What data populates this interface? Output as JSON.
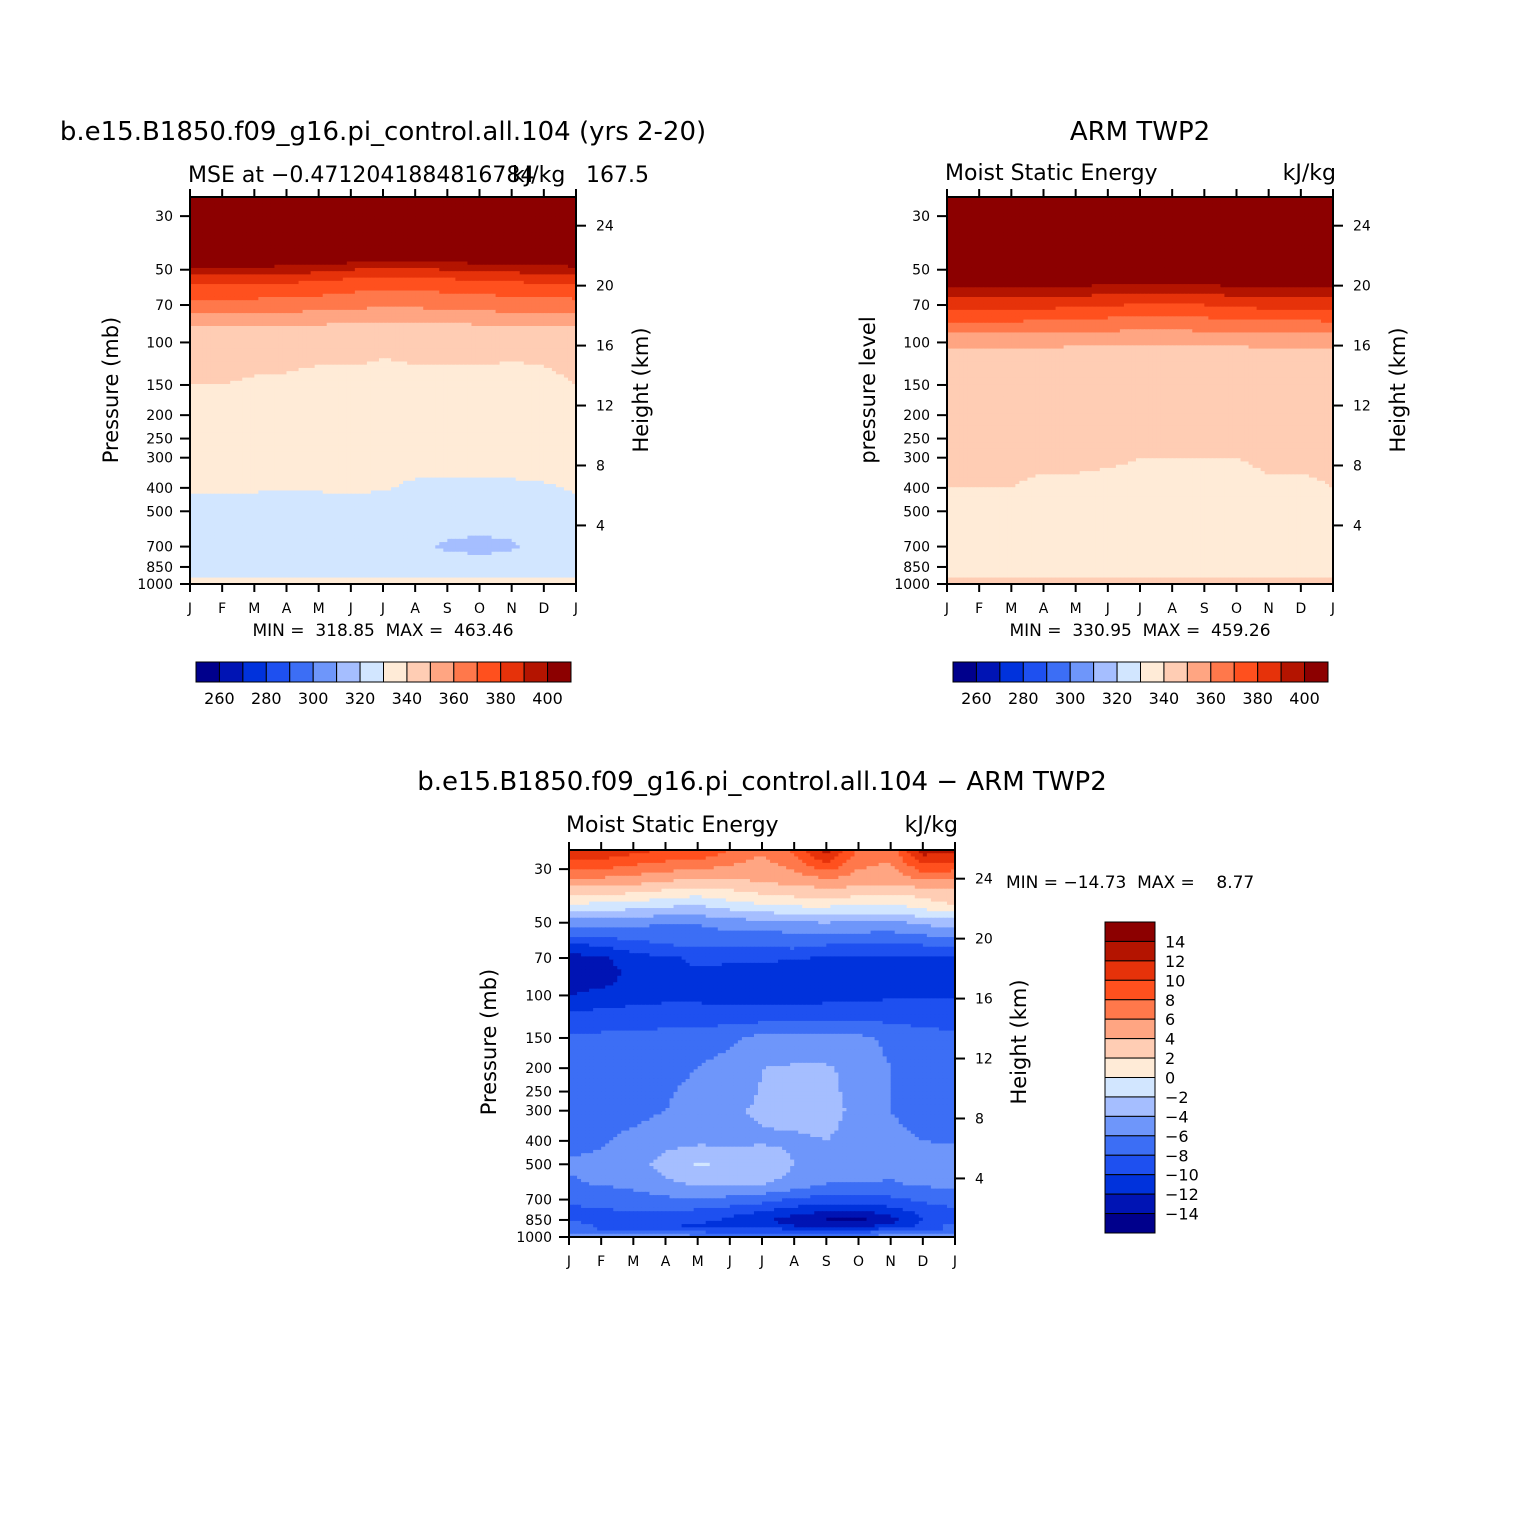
{
  "chart_data": [
    {
      "type": "heatmap",
      "title": "b.e15.B1850.f09_g16.pi_control.all.104 (yrs 2-20)",
      "subtitle_left": "MSE at −0.4712041884816784",
      "subtitle_mid": "kJ/kg",
      "subtitle_right": "167.5",
      "ylabel": "Pressure (mb)",
      "ylabel_right": "Height (km)",
      "x_ticks": [
        "J",
        "F",
        "M",
        "A",
        "M",
        "J",
        "J",
        "A",
        "S",
        "O",
        "N",
        "D",
        "J"
      ],
      "y_ticks": [
        "30",
        "50",
        "70",
        "100",
        "150",
        "200",
        "250",
        "300",
        "400",
        "500",
        "700",
        "850",
        "1000"
      ],
      "y_ticks_right": [
        "24",
        "20",
        "16",
        "12",
        "8",
        "4"
      ],
      "stats": "MIN =  318.85  MAX =  463.46",
      "levels": [
        255,
        260,
        270,
        280,
        290,
        300,
        310,
        320,
        330,
        340,
        350,
        360,
        370,
        380,
        390,
        400,
        410
      ],
      "colorbar_labels": [
        "260",
        "280",
        "300",
        "320",
        "340",
        "360",
        "380",
        "400"
      ],
      "months": [
        0,
        1,
        2,
        3,
        4,
        5,
        6,
        7,
        8,
        9,
        10,
        11,
        12
      ],
      "pressure_levels": [
        30,
        45,
        50,
        55,
        60,
        70,
        80,
        90,
        100,
        150,
        200,
        300,
        400,
        500,
        700,
        850,
        950,
        1000
      ],
      "values": [
        [
          455,
          455,
          455,
          455,
          455,
          455,
          455,
          455,
          455,
          455,
          455,
          455,
          455
        ],
        [
          410,
          410,
          410,
          410,
          408,
          406,
          403,
          403,
          405,
          406,
          407,
          409,
          410
        ],
        [
          396,
          396,
          396,
          395,
          393,
          390,
          388,
          389,
          390,
          392,
          393,
          394,
          396
        ],
        [
          384,
          384,
          384,
          383,
          381,
          379,
          377,
          378,
          379,
          381,
          382,
          383,
          384
        ],
        [
          376,
          376,
          376,
          375,
          374,
          372,
          370,
          371,
          372,
          373,
          374,
          375,
          376
        ],
        [
          366,
          366,
          366,
          365,
          364,
          363,
          361,
          362,
          363,
          364,
          365,
          365,
          366
        ],
        [
          356,
          356,
          356,
          355,
          354,
          353,
          352,
          352,
          353,
          354,
          355,
          355,
          356
        ],
        [
          347,
          347,
          347,
          346,
          345,
          344,
          343,
          343,
          344,
          345,
          346,
          346,
          347
        ],
        [
          343,
          343,
          343,
          342,
          342,
          342,
          341,
          341,
          341,
          342,
          342,
          342,
          343
        ],
        [
          340,
          340,
          339,
          339,
          338,
          338,
          338,
          339,
          339,
          338,
          337,
          338,
          340
        ],
        [
          336,
          336,
          336,
          336,
          336,
          336,
          336,
          336,
          336,
          336,
          336,
          336,
          336
        ],
        [
          334,
          334,
          334,
          334,
          334,
          334,
          334,
          334,
          334,
          334,
          334,
          334,
          334
        ],
        [
          331,
          331,
          331,
          331,
          331,
          332,
          331,
          328,
          328,
          328,
          328,
          329,
          331
        ],
        [
          327,
          327,
          325,
          324,
          324,
          324,
          322,
          322,
          322,
          322,
          322,
          324,
          327
        ],
        [
          324,
          324,
          323,
          322,
          322,
          322,
          321,
          321,
          319.5,
          318.9,
          319.5,
          322,
          324
        ],
        [
          323,
          323,
          322,
          322,
          322,
          322,
          322,
          322,
          322,
          322,
          322,
          322,
          323
        ],
        [
          331,
          331,
          331,
          332,
          332,
          332,
          331,
          331,
          331,
          331,
          331,
          331,
          331
        ],
        [
          335,
          335,
          335,
          335,
          335,
          335,
          335,
          335,
          335,
          335,
          335,
          335,
          335
        ]
      ]
    },
    {
      "type": "heatmap",
      "title": "ARM TWP2",
      "subtitle_left": "Moist Static Energy",
      "subtitle_right": "kJ/kg",
      "ylabel": "pressure level",
      "ylabel_right": "Height (km)",
      "x_ticks": [
        "J",
        "F",
        "M",
        "A",
        "M",
        "J",
        "J",
        "A",
        "S",
        "O",
        "N",
        "D",
        "J"
      ],
      "y_ticks": [
        "30",
        "50",
        "70",
        "100",
        "150",
        "200",
        "250",
        "300",
        "400",
        "500",
        "700",
        "850",
        "1000"
      ],
      "y_ticks_right": [
        "24",
        "20",
        "16",
        "12",
        "8",
        "4"
      ],
      "stats": "MIN =  330.95  MAX =  459.26",
      "levels": [
        255,
        260,
        270,
        280,
        290,
        300,
        310,
        320,
        330,
        340,
        350,
        360,
        370,
        380,
        390,
        400,
        410
      ],
      "colorbar_labels": [
        "260",
        "280",
        "300",
        "320",
        "340",
        "360",
        "380",
        "400"
      ],
      "months": [
        0,
        1,
        2,
        3,
        4,
        5,
        6,
        7,
        8,
        9,
        10,
        11,
        12
      ],
      "pressure_levels": [
        30,
        50,
        57,
        62,
        70,
        80,
        90,
        100,
        120,
        150,
        200,
        300,
        400,
        500,
        700,
        850,
        950,
        1000
      ],
      "values": [
        [
          450,
          450,
          450,
          450,
          450,
          450,
          450,
          450,
          450,
          450,
          450,
          450,
          450
        ],
        [
          430,
          430,
          430,
          430,
          430,
          430,
          430,
          430,
          430,
          430,
          430,
          430,
          430
        ],
        [
          405,
          405,
          405,
          404,
          403,
          402,
          401,
          401,
          402,
          403,
          404,
          404,
          405
        ],
        [
          395,
          395,
          395,
          394,
          393,
          392,
          391,
          391,
          392,
          393,
          394,
          394,
          395
        ],
        [
          384,
          384,
          384,
          383,
          382,
          381,
          379,
          379,
          380,
          382,
          383,
          383,
          384
        ],
        [
          372,
          372,
          372,
          371,
          370,
          369,
          368,
          368,
          369,
          370,
          371,
          371,
          372
        ],
        [
          362,
          362,
          362,
          361,
          361,
          360,
          359,
          359,
          360,
          361,
          361,
          361,
          362
        ],
        [
          352,
          352,
          352,
          352,
          351,
          351,
          351,
          351,
          351,
          351,
          352,
          352,
          352
        ],
        [
          345,
          345,
          345,
          345,
          345,
          345,
          345,
          345,
          345,
          345,
          345,
          345,
          345
        ],
        [
          344,
          344,
          344,
          344,
          344,
          344,
          344,
          344,
          344,
          344,
          344,
          344,
          344
        ],
        [
          342,
          342,
          342,
          342,
          342,
          342,
          342,
          342,
          342,
          342,
          342,
          342,
          342
        ],
        [
          341,
          341,
          341,
          341,
          341,
          341,
          340,
          340,
          340,
          340,
          341,
          341,
          341
        ],
        [
          340,
          340,
          340,
          339,
          339,
          338,
          338,
          339,
          337,
          338,
          339,
          339,
          340
        ],
        [
          337,
          337,
          337,
          337,
          337,
          337,
          337,
          337,
          337,
          337,
          337,
          337,
          337
        ],
        [
          335,
          335,
          335,
          335,
          335,
          335,
          335,
          335,
          335,
          335,
          335,
          335,
          335
        ],
        [
          333,
          333,
          333,
          333,
          333,
          333,
          333,
          333,
          333,
          333,
          333,
          333,
          333
        ],
        [
          341,
          341,
          342,
          342,
          342,
          341,
          341,
          341,
          341,
          341,
          341,
          341,
          341
        ],
        [
          343,
          343,
          343,
          343,
          343,
          343,
          343,
          343,
          343,
          343,
          343,
          343,
          343
        ]
      ]
    },
    {
      "type": "heatmap",
      "title": "b.e15.B1850.f09_g16.pi_control.all.104 − ARM TWP2",
      "subtitle_left": "Moist Static Energy",
      "subtitle_right": "kJ/kg",
      "ylabel": "Pressure (mb)",
      "ylabel_right": "Height (km)",
      "x_ticks": [
        "J",
        "F",
        "M",
        "A",
        "M",
        "J",
        "J",
        "A",
        "S",
        "O",
        "N",
        "D",
        "J"
      ],
      "y_ticks": [
        "30",
        "50",
        "70",
        "100",
        "150",
        "200",
        "250",
        "300",
        "400",
        "500",
        "700",
        "850",
        "1000"
      ],
      "y_ticks_right": [
        "24",
        "20",
        "16",
        "12",
        "8",
        "4"
      ],
      "stats": "MIN = −14.73  MAX =    8.77",
      "levels": [
        -17,
        -14,
        -12,
        -10,
        -8,
        -6,
        -4,
        -2,
        0,
        2,
        4,
        6,
        8,
        10,
        12,
        14,
        17
      ],
      "colorbar_labels": [
        "14",
        "12",
        "10",
        "8",
        "6",
        "4",
        "2",
        "0",
        "−2",
        "−4",
        "−6",
        "−8",
        "−10",
        "−12",
        "−14"
      ],
      "months": [
        0,
        1,
        2,
        3,
        4,
        5,
        6,
        7,
        8,
        9,
        10,
        11,
        12
      ],
      "pressure_levels": [
        30,
        34,
        38,
        42,
        46,
        50,
        55,
        60,
        65,
        70,
        80,
        90,
        100,
        120,
        150,
        200,
        300,
        400,
        500,
        600,
        700,
        800,
        850,
        900,
        950,
        1000
      ],
      "values": [
        [
          8.2,
          8.0,
          7.2,
          6.5,
          6.0,
          5.5,
          5.0,
          6.2,
          8.6,
          6.0,
          5.5,
          8.7,
          8.4
        ],
        [
          5.0,
          4.9,
          4.5,
          3.8,
          3.0,
          3.5,
          4.0,
          4.5,
          5.0,
          4.8,
          4.5,
          5.2,
          5.0
        ],
        [
          2.5,
          2.2,
          1.8,
          1.0,
          0.5,
          1.2,
          2.0,
          2.5,
          3.0,
          2.5,
          2.0,
          2.5,
          3.5
        ],
        [
          0.0,
          -0.5,
          -0.8,
          -1.5,
          -1.8,
          -0.8,
          0.0,
          0.5,
          0.5,
          0.2,
          -0.2,
          1.2,
          2.0
        ],
        [
          -2.5,
          -2.8,
          -3.2,
          -3.6,
          -3.7,
          -3.0,
          -2.5,
          -2.0,
          -1.8,
          -1.9,
          -2.2,
          -1.2,
          -0.5
        ],
        [
          -5.5,
          -5.2,
          -5.5,
          -5.8,
          -5.8,
          -5.0,
          -4.6,
          -4.2,
          -4.0,
          -4.3,
          -4.5,
          -3.6,
          -3.0
        ],
        [
          -7.0,
          -6.9,
          -6.8,
          -6.8,
          -6.7,
          -6.3,
          -6.2,
          -6.0,
          -6.0,
          -6.0,
          -6.2,
          -5.5,
          -5.0
        ],
        [
          -9.8,
          -9.0,
          -8.2,
          -7.8,
          -7.4,
          -7.5,
          -7.6,
          -7.2,
          -7.4,
          -7.6,
          -8.0,
          -7.4,
          -7.0
        ],
        [
          -11.5,
          -11.0,
          -9.5,
          -8.5,
          -8.5,
          -8.4,
          -8.4,
          -8.2,
          -9.0,
          -9.2,
          -9.4,
          -9.0,
          -8.5
        ],
        [
          -12.6,
          -12.4,
          -11.0,
          -10.4,
          -9.5,
          -9.6,
          -9.7,
          -9.8,
          -10.2,
          -10.1,
          -10.3,
          -10.3,
          -10.4
        ],
        [
          -13.0,
          -12.8,
          -11.5,
          -10.8,
          -10.3,
          -10.6,
          -10.8,
          -11.0,
          -11.3,
          -11.2,
          -11.4,
          -11.2,
          -11.0
        ],
        [
          -12.8,
          -12.4,
          -11.4,
          -10.6,
          -10.7,
          -10.8,
          -11.2,
          -11.3,
          -11.2,
          -11.0,
          -11.2,
          -11.2,
          -10.9
        ],
        [
          -12.0,
          -11.2,
          -10.8,
          -10.6,
          -10.6,
          -10.7,
          -10.9,
          -10.8,
          -10.6,
          -10.4,
          -10.3,
          -10.3,
          -10.1
        ],
        [
          -9.6,
          -9.4,
          -9.2,
          -9.0,
          -9.0,
          -9.1,
          -9.2,
          -9.0,
          -9.0,
          -8.9,
          -8.8,
          -8.9,
          -9.0
        ],
        [
          -7.5,
          -7.5,
          -7.4,
          -7.2,
          -7.0,
          -6.5,
          -5.3,
          -5.0,
          -5.0,
          -5.5,
          -6.5,
          -7.2,
          -7.5
        ],
        [
          -7.0,
          -7.0,
          -6.8,
          -6.5,
          -6.0,
          -5.0,
          -4.0,
          -3.8,
          -3.8,
          -4.5,
          -6.0,
          -6.8,
          -7.0
        ],
        [
          -6.8,
          -6.8,
          -6.5,
          -6.0,
          -5.0,
          -4.2,
          -3.8,
          -3.6,
          -3.6,
          -4.3,
          -6.0,
          -6.5,
          -6.8
        ],
        [
          -6.5,
          -6.2,
          -5.5,
          -4.8,
          -4.4,
          -4.4,
          -4.2,
          -4.2,
          -4.0,
          -4.4,
          -5.6,
          -6.0,
          -6.2
        ],
        [
          -5.8,
          -5.6,
          -5.0,
          -3.0,
          -1.8,
          -2.4,
          -2.8,
          -4.0,
          -4.6,
          -4.4,
          -5.2,
          -4.6,
          -4.5
        ],
        [
          -6.2,
          -5.8,
          -5.5,
          -4.5,
          -3.6,
          -3.6,
          -3.8,
          -4.6,
          -6.0,
          -6.2,
          -6.2,
          -5.6,
          -5.6
        ],
        [
          -7.6,
          -7.4,
          -6.8,
          -6.4,
          -6.2,
          -6.6,
          -7.2,
          -8.4,
          -8.8,
          -8.8,
          -8.4,
          -7.6,
          -7.2
        ],
        [
          -8.6,
          -8.4,
          -8.2,
          -8.5,
          -8.8,
          -9.5,
          -10.5,
          -11.6,
          -12.6,
          -12.8,
          -11.5,
          -9.6,
          -8.6
        ],
        [
          -8.4,
          -8.6,
          -8.8,
          -9.4,
          -9.6,
          -10.3,
          -11.5,
          -13.2,
          -14.2,
          -14.7,
          -13.0,
          -10.0,
          -8.6
        ],
        [
          -6.6,
          -8.4,
          -9.0,
          -9.8,
          -10.3,
          -10.6,
          -11.0,
          -12.0,
          -12.4,
          -12.3,
          -11.6,
          -9.6,
          -7.2
        ],
        [
          -7.6,
          -8.0,
          -8.2,
          -8.2,
          -8.3,
          -8.4,
          -8.5,
          -8.6,
          -8.5,
          -8.4,
          -8.2,
          -8.0,
          -7.6
        ],
        [
          -5.0,
          -5.0,
          -5.0,
          -5.0,
          -5.0,
          -5.0,
          -5.0,
          -5.0,
          -5.0,
          -5.0,
          -5.0,
          -5.0,
          -5.0
        ]
      ]
    }
  ],
  "colors": {
    "fills": [
      "#00008c",
      "#0014b4",
      "#0032dc",
      "#1e50f0",
      "#3c6ef5",
      "#6e96fa",
      "#a5beff",
      "#d2e6ff",
      "#ffebd7",
      "#ffcdb4",
      "#ffa582",
      "#ff784b",
      "#ff501e",
      "#e6320a",
      "#b41400",
      "#8c0000"
    ]
  }
}
